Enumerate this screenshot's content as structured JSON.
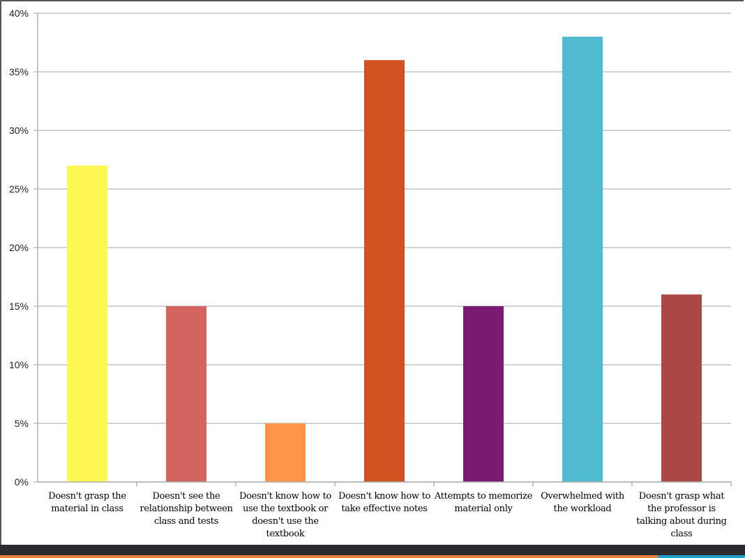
{
  "chart_data": {
    "type": "bar",
    "title": "",
    "xlabel": "",
    "ylabel": "",
    "ylim": [
      0,
      40
    ],
    "yticks": [
      "0%",
      "5%",
      "10%",
      "15%",
      "20%",
      "25%",
      "30%",
      "35%",
      "40%"
    ],
    "grid": true,
    "categories": [
      "Doesn't grasp the material in class",
      "Doesn't see the relationship between class and tests",
      "Doesn't know how to use the textbook or doesn't use the textbook",
      "Doesn't know how to take effective notes",
      "Attempts to memorize material only",
      "Overwhelmed with the workload",
      "Doesn't grasp what the professor is talking about during class"
    ],
    "values": [
      27,
      15,
      5,
      36,
      15,
      38,
      16
    ],
    "colors": [
      "#fdf751",
      "#d36460",
      "#fd9446",
      "#d0521e",
      "#7a1b72",
      "#4fbbd0",
      "#ab4745"
    ]
  },
  "theme": {
    "footer_dark": "#2b2b2d",
    "footer_orange": "#e8823c",
    "footer_blue": "#1ea0d0"
  }
}
